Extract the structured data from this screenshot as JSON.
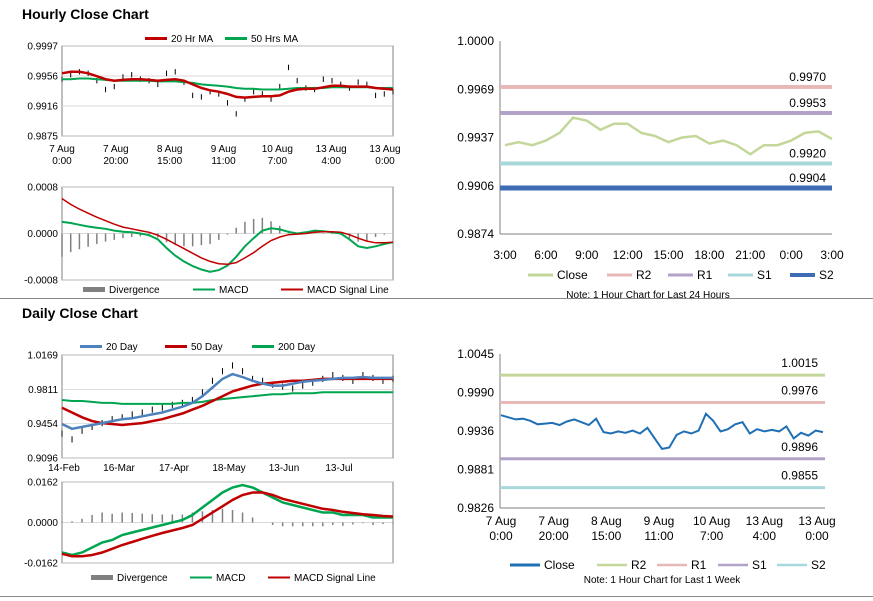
{
  "hourly": {
    "title": "Hourly Close Chart",
    "price": {
      "type": "line",
      "legend": [
        "20 Hr MA",
        "50 Hrs MA"
      ],
      "y_ticks": [
        "0.9997",
        "0.9956",
        "0.9916",
        "0.9875"
      ],
      "ylim": [
        0.9875,
        0.9997
      ],
      "x_ticks": [
        [
          "7 Aug",
          "0:00"
        ],
        [
          "7 Aug",
          "20:00"
        ],
        [
          "8 Aug",
          "15:00"
        ],
        [
          "9 Aug",
          "11:00"
        ],
        [
          "10 Aug",
          "7:00"
        ],
        [
          "13 Aug",
          "4:00"
        ],
        [
          "13 Aug",
          "0:00"
        ]
      ],
      "close": [
        0.9952,
        0.9958,
        0.9962,
        0.996,
        0.995,
        0.9938,
        0.9942,
        0.9955,
        0.9958,
        0.9952,
        0.995,
        0.9945,
        0.996,
        0.9962,
        0.9948,
        0.993,
        0.9928,
        0.9935,
        0.9932,
        0.992,
        0.9905,
        0.9925,
        0.9935,
        0.9932,
        0.9925,
        0.9942,
        0.9968,
        0.995,
        0.994,
        0.9938,
        0.9952,
        0.995,
        0.9945,
        0.994,
        0.9948,
        0.9945,
        0.993,
        0.9932,
        0.9935
      ],
      "ma20": [
        0.996,
        0.9962,
        0.9962,
        0.996,
        0.9956,
        0.9952,
        0.995,
        0.9951,
        0.9952,
        0.9952,
        0.9951,
        0.995,
        0.9951,
        0.9952,
        0.995,
        0.9945,
        0.994,
        0.9937,
        0.9935,
        0.9932,
        0.9928,
        0.9927,
        0.9928,
        0.9929,
        0.9929,
        0.993,
        0.9935,
        0.9938,
        0.9939,
        0.9939,
        0.9941,
        0.9943,
        0.9943,
        0.9942,
        0.9942,
        0.9942,
        0.994,
        0.9939,
        0.9938
      ],
      "ma50": [
        0.9952,
        0.9952,
        0.9953,
        0.9953,
        0.9952,
        0.9951,
        0.995,
        0.995,
        0.995,
        0.995,
        0.995,
        0.9949,
        0.9949,
        0.9949,
        0.9948,
        0.9947,
        0.9945,
        0.9944,
        0.9943,
        0.9942,
        0.994,
        0.9939,
        0.9939,
        0.9938,
        0.9938,
        0.9938,
        0.9939,
        0.994,
        0.994,
        0.994,
        0.994,
        0.9941,
        0.9941,
        0.9941,
        0.9941,
        0.9941,
        0.994,
        0.994,
        0.994
      ]
    },
    "macd": {
      "type": "line",
      "legend": [
        "Divergence",
        "MACD",
        "MACD Signal Line"
      ],
      "y_ticks": [
        "0.0008",
        "0.0000",
        "-0.0008"
      ],
      "ylim": [
        -0.0008,
        0.0008
      ],
      "macd": [
        0.0002,
        0.00018,
        0.00015,
        0.00012,
        0.0001,
        8e-05,
        5e-05,
        3e-05,
        2e-05,
        0.0,
        -3e-05,
        -0.0001,
        -0.00025,
        -0.00038,
        -0.00048,
        -0.00056,
        -0.00062,
        -0.00066,
        -0.00063,
        -0.00055,
        -0.0004,
        -0.00022,
        -8e-05,
        5e-05,
        9e-05,
        7e-05,
        3e-05,
        0.0,
        2e-05,
        5e-05,
        4e-05,
        2e-05,
        0.0,
        -0.0001,
        -0.00022,
        -0.00025,
        -0.00022,
        -0.00018,
        -0.00015
      ],
      "signal": [
        0.0006,
        0.0005,
        0.00042,
        0.00035,
        0.00028,
        0.00022,
        0.00016,
        0.00011,
        8e-05,
        5e-05,
        2e-05,
        -3e-05,
        -0.0001,
        -0.00018,
        -0.00026,
        -0.00034,
        -0.00042,
        -0.00048,
        -0.00052,
        -0.00053,
        -0.0005,
        -0.00042,
        -0.00033,
        -0.00022,
        -0.00012,
        -6e-05,
        -2e-05,
        -1e-05,
        0.0,
        2e-05,
        3e-05,
        3e-05,
        2e-05,
        -2e-05,
        -8e-05,
        -0.00013,
        -0.00016,
        -0.00016,
        -0.00015
      ]
    },
    "levels": {
      "type": "line",
      "y_ticks": [
        "1.0000",
        "0.9969",
        "0.9937",
        "0.9906",
        "0.9874"
      ],
      "ylim": [
        0.9874,
        1.0
      ],
      "x_ticks": [
        "3:00",
        "6:00",
        "9:00",
        "12:00",
        "15:00",
        "18:00",
        "21:00",
        "0:00",
        "3:00"
      ],
      "close": [
        0.9932,
        0.9934,
        0.9932,
        0.9935,
        0.994,
        0.995,
        0.9948,
        0.9942,
        0.9946,
        0.9946,
        0.994,
        0.9938,
        0.9934,
        0.9937,
        0.9938,
        0.9933,
        0.9935,
        0.9932,
        0.9926,
        0.9932,
        0.9932,
        0.9935,
        0.994,
        0.9941,
        0.9936
      ],
      "levels": [
        {
          "name": "R2",
          "value": 0.997,
          "label": "0.9970"
        },
        {
          "name": "R1",
          "value": 0.9953,
          "label": "0.9953"
        },
        {
          "name": "S1",
          "value": 0.992,
          "label": "0.9920"
        },
        {
          "name": "S2",
          "value": 0.9904,
          "label": "0.9904"
        }
      ],
      "legend": [
        "Close",
        "R2",
        "R1",
        "S1",
        "S2"
      ],
      "note": "Note: 1 Hour Chart for Last 24 Hours"
    }
  },
  "daily": {
    "title": "Daily Close Chart",
    "price": {
      "type": "line",
      "legend": [
        "20 Day",
        "50 Day",
        "200 Day"
      ],
      "y_ticks": [
        "1.0169",
        "0.9811",
        "0.9454",
        "0.9096"
      ],
      "ylim": [
        0.9096,
        1.0169
      ],
      "x_ticks": [
        "14-Feb",
        "16-Mar",
        "17-Apr",
        "18-May",
        "13-Jun",
        "13-Jul"
      ],
      "close": [
        0.935,
        0.929,
        0.938,
        0.942,
        0.946,
        0.95,
        0.952,
        0.955,
        0.957,
        0.96,
        0.962,
        0.965,
        0.967,
        0.97,
        0.978,
        0.99,
        1.0,
        1.006,
        1.0,
        0.992,
        0.99,
        0.986,
        0.984,
        0.982,
        0.985,
        0.988,
        0.992,
        0.996,
        0.993,
        0.99,
        0.996,
        0.993,
        0.99,
        0.992
      ],
      "ma20": [
        0.945,
        0.94,
        0.942,
        0.944,
        0.946,
        0.948,
        0.95,
        0.951,
        0.953,
        0.955,
        0.957,
        0.96,
        0.963,
        0.967,
        0.974,
        0.983,
        0.992,
        0.997,
        0.994,
        0.99,
        0.987,
        0.985,
        0.985,
        0.987,
        0.989,
        0.99,
        0.991,
        0.992,
        0.993,
        0.993,
        0.994,
        0.993,
        0.993,
        0.993
      ],
      "ma50": [
        0.962,
        0.957,
        0.952,
        0.948,
        0.946,
        0.945,
        0.944,
        0.945,
        0.946,
        0.948,
        0.95,
        0.953,
        0.956,
        0.96,
        0.964,
        0.969,
        0.974,
        0.979,
        0.982,
        0.985,
        0.987,
        0.988,
        0.989,
        0.99,
        0.99,
        0.991,
        0.992,
        0.992,
        0.992,
        0.992,
        0.992,
        0.992,
        0.992,
        0.992
      ],
      "ma200": [
        0.97,
        0.969,
        0.969,
        0.968,
        0.967,
        0.967,
        0.966,
        0.966,
        0.966,
        0.966,
        0.966,
        0.966,
        0.967,
        0.967,
        0.968,
        0.97,
        0.971,
        0.972,
        0.973,
        0.974,
        0.975,
        0.976,
        0.976,
        0.977,
        0.977,
        0.977,
        0.978,
        0.978,
        0.978,
        0.978,
        0.978,
        0.978,
        0.978,
        0.978
      ]
    },
    "macd": {
      "type": "line",
      "legend": [
        "Divergence",
        "MACD",
        "MACD Signal Line"
      ],
      "y_ticks": [
        "0.0162",
        "0.0000",
        "-0.0162"
      ],
      "ylim": [
        -0.0162,
        0.0162
      ],
      "macd": [
        -0.012,
        -0.013,
        -0.012,
        -0.01,
        -0.008,
        -0.007,
        -0.005,
        -0.004,
        -0.003,
        -0.002,
        -0.001,
        0.0,
        0.001,
        0.003,
        0.006,
        0.009,
        0.012,
        0.014,
        0.015,
        0.014,
        0.012,
        0.01,
        0.008,
        0.007,
        0.006,
        0.005,
        0.004,
        0.004,
        0.003,
        0.003,
        0.003,
        0.002,
        0.002,
        0.002
      ],
      "signal": [
        -0.0125,
        -0.0135,
        -0.0135,
        -0.013,
        -0.012,
        -0.0105,
        -0.009,
        -0.0078,
        -0.0065,
        -0.0053,
        -0.0042,
        -0.0032,
        -0.0022,
        -0.001,
        0.0015,
        0.004,
        0.0065,
        0.009,
        0.011,
        0.012,
        0.012,
        0.011,
        0.0095,
        0.0085,
        0.0075,
        0.0065,
        0.0055,
        0.005,
        0.0043,
        0.0038,
        0.0033,
        0.003,
        0.0026,
        0.0024
      ]
    },
    "levels": {
      "type": "line",
      "y_ticks": [
        "1.0045",
        "0.9990",
        "0.9936",
        "0.9881",
        "0.9826"
      ],
      "ylim": [
        0.9826,
        1.0045
      ],
      "x_ticks": [
        [
          "7 Aug",
          "0:00"
        ],
        [
          "7 Aug",
          "20:00"
        ],
        [
          "8 Aug",
          "15:00"
        ],
        [
          "9 Aug",
          "11:00"
        ],
        [
          "10 Aug",
          "7:00"
        ],
        [
          "13 Aug",
          "4:00"
        ],
        [
          "13 Aug",
          "0:00"
        ]
      ],
      "close": [
        0.9958,
        0.9955,
        0.9952,
        0.9953,
        0.995,
        0.9945,
        0.9946,
        0.9947,
        0.9944,
        0.9949,
        0.9952,
        0.9948,
        0.9944,
        0.9953,
        0.9934,
        0.9932,
        0.9935,
        0.9933,
        0.9936,
        0.9932,
        0.994,
        0.9925,
        0.991,
        0.9912,
        0.993,
        0.9935,
        0.9932,
        0.9936,
        0.996,
        0.995,
        0.9935,
        0.9938,
        0.9945,
        0.9948,
        0.9932,
        0.9938,
        0.9935,
        0.9937,
        0.9935,
        0.9942,
        0.9925,
        0.9933,
        0.9929,
        0.9936,
        0.9934
      ],
      "levels": [
        {
          "name": "R2",
          "value": 1.0015,
          "label": "1.0015"
        },
        {
          "name": "R1",
          "value": 0.9976,
          "label": "0.9976"
        },
        {
          "name": "S1",
          "value": 0.9896,
          "label": "0.9896"
        },
        {
          "name": "S2",
          "value": 0.9855,
          "label": "0.9855"
        }
      ],
      "legend": [
        "Close",
        "R2",
        "R1",
        "S1",
        "S2"
      ],
      "note": "Note: 1 Hour Chart for Last 1 Week"
    }
  },
  "colors": {
    "close": "#000000",
    "ma_red": "#c00000",
    "ma_green": "#00a550",
    "ma_blue": "#4f81bd",
    "div": "#808080",
    "R2_h": "#e6b8b7",
    "R1_h": "#b3a2c7",
    "S1_h": "#a8d8dc",
    "S2_h": "#3e6db5",
    "close_h": "#c4d79b",
    "close_d": "#1f6fb5",
    "R2_d": "#c4d79b",
    "R1_d": "#e6b8b7",
    "S1_d": "#b3a2c7",
    "S2_d": "#a8d8dc",
    "grid": "#cccccc",
    "axis": "#808080"
  }
}
